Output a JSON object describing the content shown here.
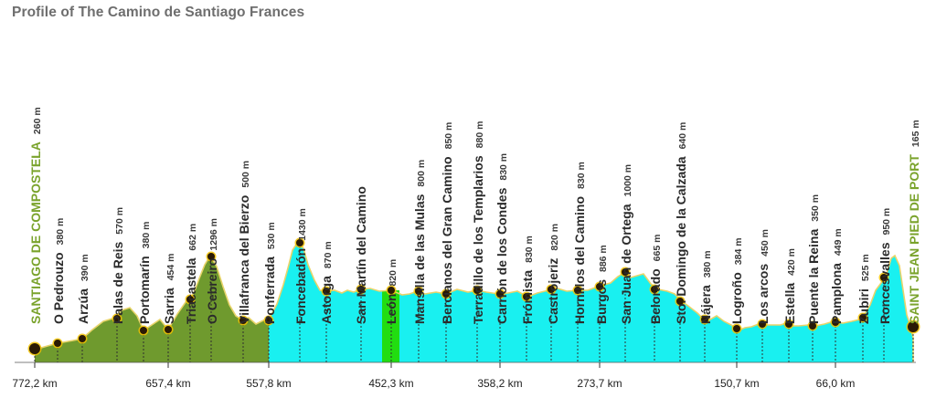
{
  "title": "Profile of The Camino de Santiago Frances",
  "colors": {
    "galicia_fill": "#6f9a2e",
    "meseta_fill": "#19f0f0",
    "leon_highlight": "#22dd11",
    "edge": "#e8d46a",
    "marker": "#2a1a05",
    "marker_glow": "#f2c200",
    "highlight_name": "#7aa32c"
  },
  "chart_data": {
    "type": "area",
    "title": "Profile of The Camino de Santiago Frances",
    "x_ticks": [
      "772,2 km",
      "657,4 km",
      "557,8 km",
      "452,3 km",
      "358,2 km",
      "273,7 km",
      "150,7 km",
      "66,0 km"
    ],
    "stops": [
      {
        "name": "SANTIAGO DE COMPOSTELA",
        "elev": "260 m",
        "highlight": true
      },
      {
        "name": "O Pedrouzo",
        "elev": "380 m"
      },
      {
        "name": "Arzúa",
        "elev": "390 m"
      },
      {
        "name": "Palas de Reis",
        "elev": "570 m"
      },
      {
        "name": "Portomarín",
        "elev": "380 m"
      },
      {
        "name": "Sarria",
        "elev": "454 m"
      },
      {
        "name": "Triacastela",
        "elev": "662 m"
      },
      {
        "name": "O Cebreiro",
        "elev": "1296 m"
      },
      {
        "name": "Villafranca del Bierzo",
        "elev": "500 m"
      },
      {
        "name": "Ponferrada",
        "elev": "530 m"
      },
      {
        "name": "Foncebadón",
        "elev": "1430 m"
      },
      {
        "name": "Astorga",
        "elev": "870 m"
      },
      {
        "name": "San Martín del Camino",
        "elev": ""
      },
      {
        "name": "León",
        "elev": "820 m"
      },
      {
        "name": "Mansilla de las Mulas",
        "elev": "800 m"
      },
      {
        "name": "Bercianos del Gran Camino",
        "elev": "850 m"
      },
      {
        "name": "Terradillo de los Templarios",
        "elev": "880 m"
      },
      {
        "name": "Carrión de los Condes",
        "elev": "830 m"
      },
      {
        "name": "Frómista",
        "elev": "830 m"
      },
      {
        "name": "Castrojeriz",
        "elev": "820 m"
      },
      {
        "name": "Hornillos del Camino",
        "elev": "830 m"
      },
      {
        "name": "Burgos",
        "elev": "886 m"
      },
      {
        "name": "San Juan de Ortega",
        "elev": "1000 m"
      },
      {
        "name": "Belorado",
        "elev": "665 m"
      },
      {
        "name": "Sto. Domingo de la Calzada",
        "elev": "640 m"
      },
      {
        "name": "Nájera",
        "elev": "380 m"
      },
      {
        "name": "Logroño",
        "elev": "384 m"
      },
      {
        "name": "Los arcos",
        "elev": "450 m"
      },
      {
        "name": "Estella",
        "elev": "420 m"
      },
      {
        "name": "Puente la Reina",
        "elev": "350 m"
      },
      {
        "name": "Pamplona",
        "elev": "449 m"
      },
      {
        "name": "Zubiri",
        "elev": "525 m"
      },
      {
        "name": "Roncesvalles",
        "elev": "950 m"
      },
      {
        "name": "SAINT JEAN PIED DE PORT",
        "elev": "165 m",
        "highlight": true
      }
    ]
  }
}
